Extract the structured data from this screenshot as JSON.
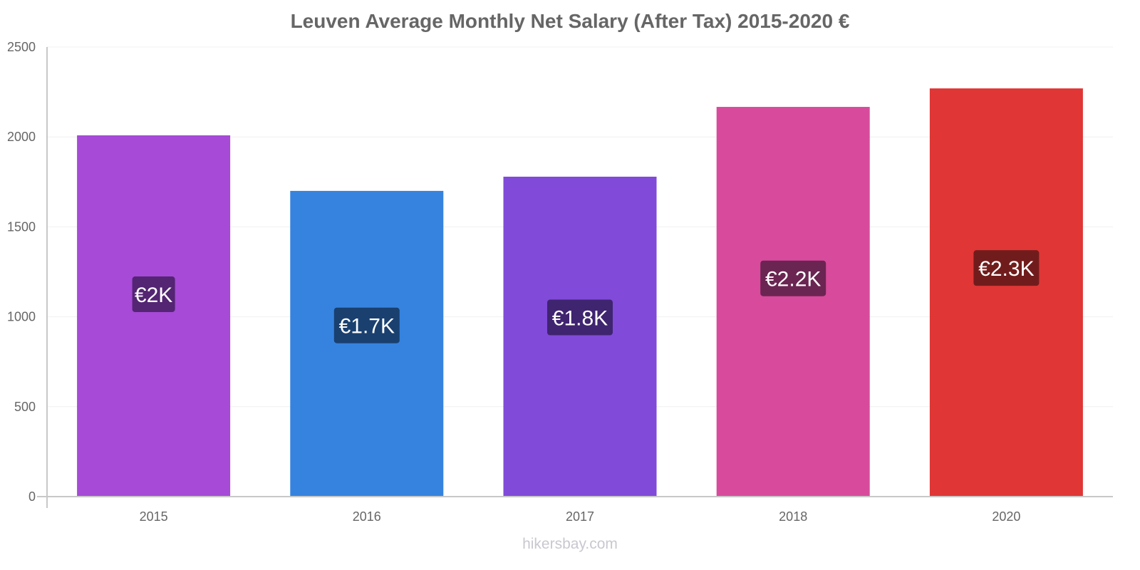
{
  "chart_data": {
    "type": "bar",
    "title": "Leuven Average Monthly Net Salary (After Tax) 2015-2020 €",
    "xlabel": "",
    "ylabel": "",
    "categories": [
      "2015",
      "2016",
      "2017",
      "2018",
      "2020"
    ],
    "values": [
      2009,
      1700,
      1779,
      2167,
      2270
    ],
    "data_labels": [
      "€2K",
      "€1.7K",
      "€1.8K",
      "€2.2K",
      "€2.3K"
    ],
    "ylim": [
      0,
      2500
    ],
    "yticks": [
      0,
      500,
      1000,
      1500,
      2000,
      2500
    ],
    "grid": true,
    "legend": "none",
    "bar_colors": [
      "#a64ad7",
      "#3683df",
      "#814ad9",
      "#d84a9c",
      "#e03636"
    ],
    "label_colors": [
      "#532572",
      "#1a406f",
      "#3f2470",
      "#6b2552",
      "#711c1c"
    ]
  },
  "watermark": "hikersbay.com"
}
